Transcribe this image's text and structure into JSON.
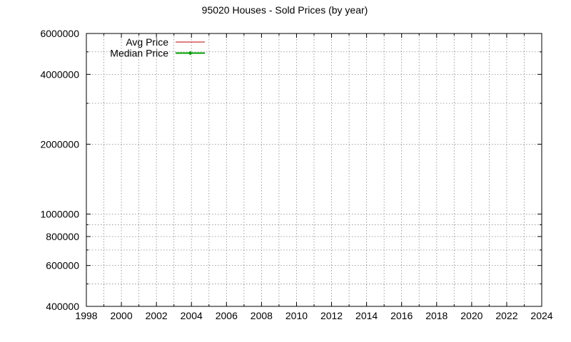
{
  "chart_data": {
    "type": "line",
    "title": "95020 Houses - Sold Prices (by year)",
    "xlabel": "",
    "ylabel": "",
    "x_range": [
      1998,
      2024
    ],
    "x_ticks": [
      1998,
      2000,
      2002,
      2004,
      2006,
      2008,
      2010,
      2012,
      2014,
      2016,
      2018,
      2020,
      2022,
      2024
    ],
    "x_minor_ticks": [
      1999,
      2001,
      2003,
      2005,
      2007,
      2009,
      2011,
      2013,
      2015,
      2017,
      2019,
      2021,
      2023
    ],
    "y_scale": "log",
    "y_range": [
      400000,
      6000000
    ],
    "y_ticks": [
      400000,
      600000,
      800000,
      1000000,
      2000000,
      4000000,
      6000000
    ],
    "y_tick_labels": [
      "400000",
      "600000",
      "800000",
      "1000000",
      "2000000",
      "4000000",
      "6000000"
    ],
    "y_minor_ticks": [
      500000,
      700000,
      900000,
      3000000,
      5000000
    ],
    "grid": true,
    "legend_position": "top-left",
    "series": [
      {
        "name": "Avg Price",
        "color": "#c00000",
        "marker": "none",
        "x": [],
        "y": []
      },
      {
        "name": "Median Price",
        "color": "#00a000",
        "marker": "diamond",
        "x": [],
        "y": []
      }
    ]
  }
}
